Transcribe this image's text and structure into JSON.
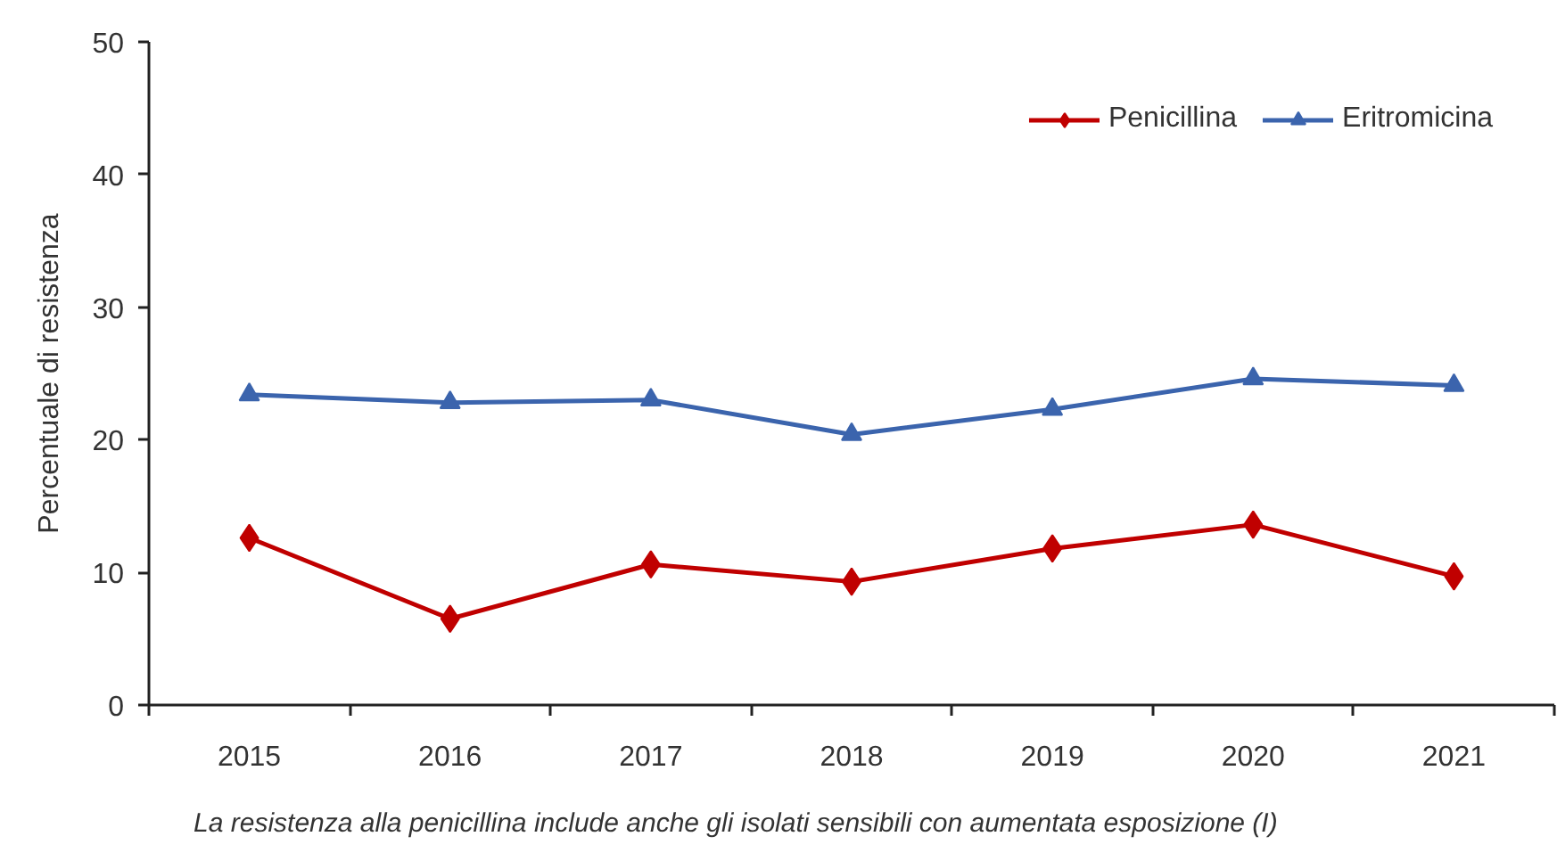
{
  "chart_data": {
    "type": "line",
    "categories": [
      "2015",
      "2016",
      "2017",
      "2018",
      "2019",
      "2020",
      "2021"
    ],
    "series": [
      {
        "name": "Penicillina",
        "color": "#c00000",
        "marker": "diamond",
        "values": [
          12.6,
          6.5,
          10.6,
          9.3,
          11.8,
          13.6,
          9.7
        ]
      },
      {
        "name": "Eritromicina",
        "color": "#3b64ad",
        "marker": "triangle",
        "values": [
          23.4,
          22.8,
          23.0,
          20.4,
          22.3,
          24.6,
          24.1
        ]
      }
    ],
    "ylabel": "Percentuale di resistenza",
    "ylim": [
      0,
      50
    ],
    "yticks": [
      0,
      10,
      20,
      30,
      40,
      50
    ],
    "legend": "top right",
    "annotations": [
      "La resistenza alla penicillina include anche gli isolati sensibili con aumentata esposizione (I)"
    ]
  }
}
